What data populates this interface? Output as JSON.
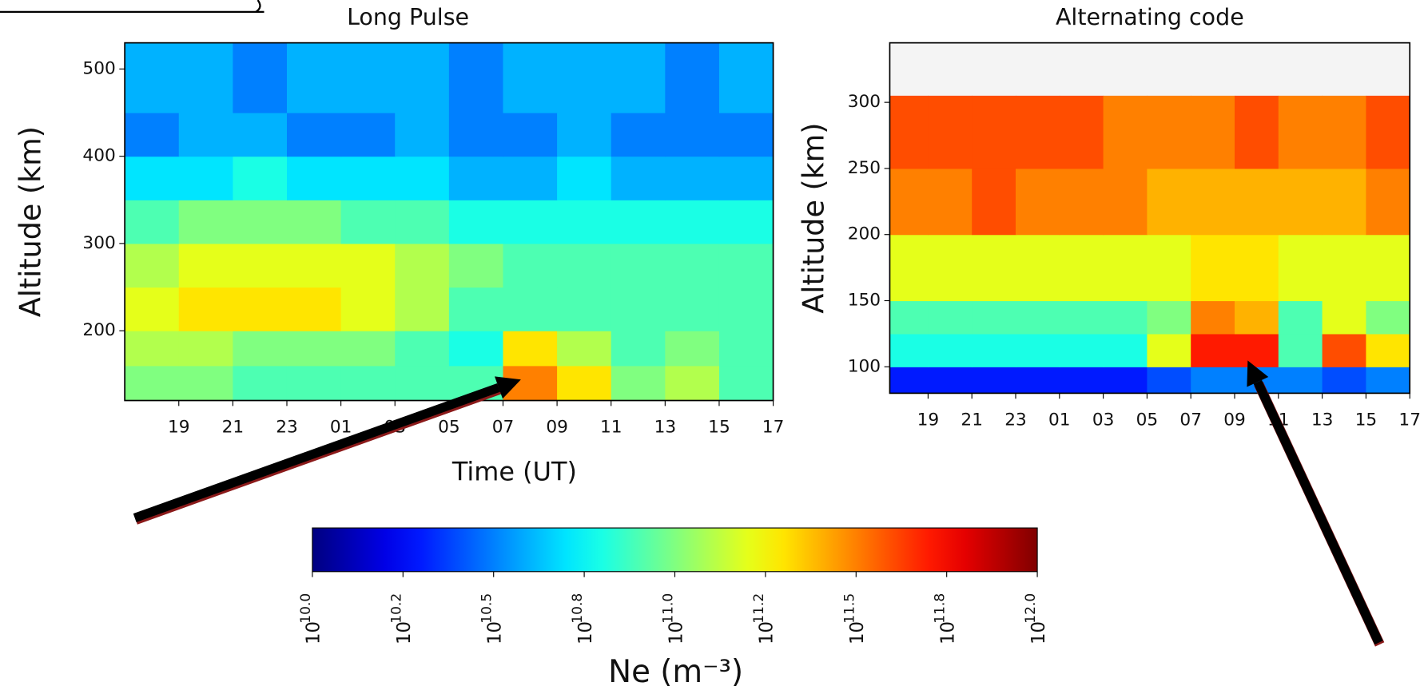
{
  "chart_data": [
    {
      "type": "heatmap",
      "title": "Long Pulse",
      "xlabel": "Time (UT)",
      "ylabel": "Altitude (km)",
      "colormap": "jet",
      "clim": [
        10,
        12
      ],
      "xlim": [
        17,
        41
      ],
      "ylim": [
        120,
        530
      ],
      "xticks": [
        19,
        21,
        23,
        {
          "value": 25,
          "label": "01"
        },
        {
          "value": 27,
          "label": "03"
        },
        {
          "value": 29,
          "label": "05"
        },
        {
          "value": 31,
          "label": "07"
        },
        {
          "value": 33,
          "label": "09"
        },
        {
          "value": 35,
          "label": "11"
        },
        {
          "value": 37,
          "label": "13"
        },
        {
          "value": 39,
          "label": "15"
        },
        {
          "value": 41,
          "label": "17"
        }
      ],
      "yticks": [
        200,
        300,
        400,
        500
      ],
      "x_bins": [
        17,
        19,
        21,
        23,
        25,
        27,
        29,
        31,
        33,
        35,
        37,
        39,
        41
      ],
      "y_bins": [
        120,
        160,
        200,
        250,
        300,
        350,
        400,
        450,
        530
      ],
      "z": [
        [
          11.0,
          11.0,
          10.9,
          10.9,
          10.9,
          10.9,
          10.9,
          11.5,
          11.3,
          11.0,
          11.1,
          10.9
        ],
        [
          11.1,
          11.1,
          11.0,
          11.0,
          11.0,
          10.9,
          10.8,
          11.3,
          11.1,
          10.9,
          11.0,
          10.9
        ],
        [
          11.2,
          11.3,
          11.3,
          11.3,
          11.2,
          11.1,
          10.9,
          10.9,
          10.9,
          10.9,
          10.9,
          10.9
        ],
        [
          11.1,
          11.2,
          11.2,
          11.2,
          11.2,
          11.1,
          11.0,
          10.9,
          10.9,
          10.9,
          10.9,
          10.9
        ],
        [
          10.9,
          11.0,
          11.0,
          11.0,
          10.9,
          10.9,
          10.8,
          10.8,
          10.8,
          10.8,
          10.8,
          10.8
        ],
        [
          10.7,
          10.7,
          10.8,
          10.7,
          10.7,
          10.7,
          10.6,
          10.6,
          10.7,
          10.6,
          10.6,
          10.6
        ],
        [
          10.5,
          10.6,
          10.6,
          10.5,
          10.5,
          10.6,
          10.5,
          10.5,
          10.6,
          10.5,
          10.5,
          10.5
        ],
        [
          10.6,
          10.6,
          10.5,
          10.6,
          10.6,
          10.6,
          10.5,
          10.6,
          10.6,
          10.6,
          10.5,
          10.6
        ]
      ]
    },
    {
      "type": "heatmap",
      "title": "Alternating code",
      "ylabel": "Altitude (km)",
      "colormap": "jet",
      "clim": [
        10,
        12
      ],
      "xlim": [
        17.25,
        41
      ],
      "ylim": [
        80,
        345
      ],
      "xticks": [
        19,
        21,
        23,
        {
          "value": 25,
          "label": "01"
        },
        {
          "value": 27,
          "label": "03"
        },
        {
          "value": 29,
          "label": "05"
        },
        {
          "value": 31,
          "label": "07"
        },
        {
          "value": 33,
          "label": "09"
        },
        {
          "value": 35,
          "label": "11"
        },
        {
          "value": 37,
          "label": "13"
        },
        {
          "value": 39,
          "label": "15"
        },
        {
          "value": 41,
          "label": "17"
        }
      ],
      "yticks": [
        100,
        150,
        200,
        250,
        300
      ],
      "x_bins": [
        17.25,
        19,
        21,
        23,
        25,
        27,
        29,
        31,
        33,
        35,
        37,
        39,
        41
      ],
      "y_bins": [
        80,
        100,
        125,
        150,
        200,
        250,
        305
      ],
      "z": [
        [
          10.3,
          10.3,
          10.3,
          10.3,
          10.3,
          10.3,
          10.4,
          10.5,
          10.5,
          10.5,
          10.4,
          10.5
        ],
        [
          10.8,
          10.8,
          10.8,
          10.8,
          10.8,
          10.8,
          11.2,
          11.7,
          11.7,
          10.9,
          11.6,
          11.3
        ],
        [
          10.9,
          10.9,
          10.9,
          10.9,
          10.9,
          10.9,
          11.0,
          11.5,
          11.4,
          10.9,
          11.2,
          11.0
        ],
        [
          11.2,
          11.2,
          11.2,
          11.2,
          11.2,
          11.2,
          11.2,
          11.3,
          11.3,
          11.2,
          11.2,
          11.2
        ],
        [
          11.5,
          11.5,
          11.6,
          11.5,
          11.5,
          11.5,
          11.4,
          11.4,
          11.4,
          11.4,
          11.4,
          11.5
        ],
        [
          11.6,
          11.6,
          11.6,
          11.6,
          11.6,
          11.5,
          11.5,
          11.5,
          11.6,
          11.5,
          11.5,
          11.6
        ]
      ]
    }
  ],
  "colorbar": {
    "label": "Ne (m⁻³)",
    "base": "10",
    "colormap": "jet",
    "lim": [
      10,
      12
    ],
    "ticks": [
      {
        "value": 10,
        "label": "10.0"
      },
      {
        "value": 10.25,
        "label": "10.2"
      },
      {
        "value": 10.5,
        "label": "10.5"
      },
      {
        "value": 10.75,
        "label": "10.8"
      },
      {
        "value": 11,
        "label": "11.0"
      },
      {
        "value": 11.25,
        "label": "11.2"
      },
      {
        "value": 11.5,
        "label": "11.5"
      },
      {
        "value": 11.75,
        "label": "11.8"
      },
      {
        "value": 12,
        "label": "12.0"
      }
    ]
  }
}
